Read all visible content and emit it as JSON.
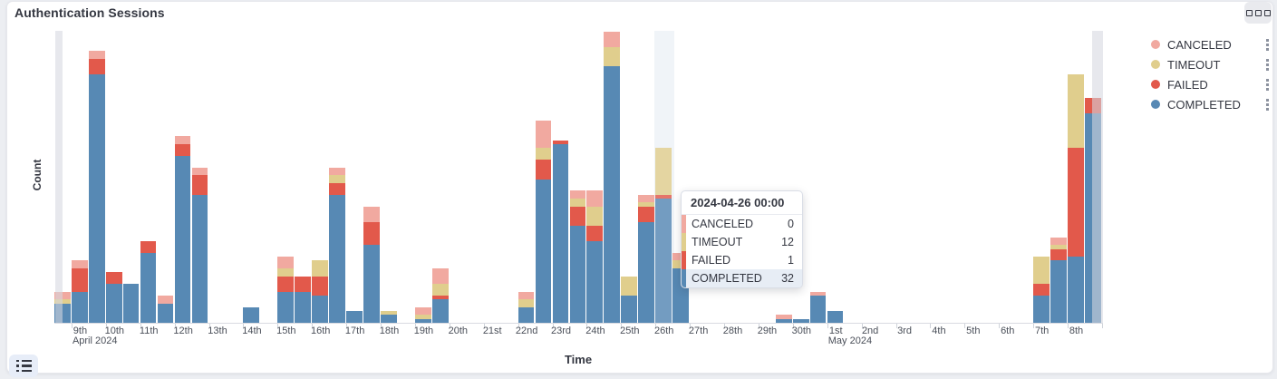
{
  "panel": {
    "title": "Authentication Sessions"
  },
  "icons": {
    "panel_options": "three-boxes-icon",
    "legend_toggle": "list-bullets-icon",
    "legend_item_action": "vertical-dots-icon"
  },
  "colors": {
    "completed": "#5789b4",
    "failed": "#e2594b",
    "timeout": "#e0ce8d",
    "canceled": "#f1a9a0",
    "hover_band": "#f0f4f8",
    "endzone": "#d5d8e0",
    "text": "#343741"
  },
  "legend": {
    "items": [
      {
        "label": "CANCELED",
        "color": "#f1a9a0"
      },
      {
        "label": "TIMEOUT",
        "color": "#e0ce8d"
      },
      {
        "label": "FAILED",
        "color": "#e2594b"
      },
      {
        "label": "COMPLETED",
        "color": "#5789b4"
      }
    ]
  },
  "tooltip": {
    "title": "2024-04-26 00:00",
    "rows": [
      {
        "label": "CANCELED",
        "value": "0",
        "color": "#f1a9a0",
        "highlighted": false
      },
      {
        "label": "TIMEOUT",
        "value": "12",
        "color": "#e0ce8d",
        "highlighted": false
      },
      {
        "label": "FAILED",
        "value": "1",
        "color": "#e2594b",
        "highlighted": false
      },
      {
        "label": "COMPLETED",
        "value": "32",
        "color": "#5789b4",
        "highlighted": true
      }
    ]
  },
  "axes": {
    "y_title": "Count",
    "x_title": "Time",
    "x_ticks": [
      {
        "m": 4,
        "d": 9,
        "label": "9th",
        "sub": "April 2024"
      },
      {
        "m": 4,
        "d": 10,
        "label": "10th"
      },
      {
        "m": 4,
        "d": 11,
        "label": "11th"
      },
      {
        "m": 4,
        "d": 12,
        "label": "12th"
      },
      {
        "m": 4,
        "d": 13,
        "label": "13th"
      },
      {
        "m": 4,
        "d": 14,
        "label": "14th"
      },
      {
        "m": 4,
        "d": 15,
        "label": "15th"
      },
      {
        "m": 4,
        "d": 16,
        "label": "16th"
      },
      {
        "m": 4,
        "d": 17,
        "label": "17th"
      },
      {
        "m": 4,
        "d": 18,
        "label": "18th"
      },
      {
        "m": 4,
        "d": 19,
        "label": "19th"
      },
      {
        "m": 4,
        "d": 20,
        "label": "20th"
      },
      {
        "m": 4,
        "d": 21,
        "label": "21st"
      },
      {
        "m": 4,
        "d": 22,
        "label": "22nd"
      },
      {
        "m": 4,
        "d": 23,
        "label": "23rd"
      },
      {
        "m": 4,
        "d": 24,
        "label": "24th"
      },
      {
        "m": 4,
        "d": 25,
        "label": "25th"
      },
      {
        "m": 4,
        "d": 26,
        "label": "26th"
      },
      {
        "m": 4,
        "d": 27,
        "label": "27th"
      },
      {
        "m": 4,
        "d": 28,
        "label": "28th"
      },
      {
        "m": 4,
        "d": 29,
        "label": "29th"
      },
      {
        "m": 4,
        "d": 30,
        "label": "30th"
      },
      {
        "m": 5,
        "d": 1,
        "label": "1st",
        "sub": "May 2024"
      },
      {
        "m": 5,
        "d": 2,
        "label": "2nd"
      },
      {
        "m": 5,
        "d": 3,
        "label": "3rd"
      },
      {
        "m": 5,
        "d": 4,
        "label": "4th"
      },
      {
        "m": 5,
        "d": 5,
        "label": "5th"
      },
      {
        "m": 5,
        "d": 6,
        "label": "6th"
      },
      {
        "m": 5,
        "d": 7,
        "label": "7th"
      },
      {
        "m": 5,
        "d": 8,
        "label": "8th"
      }
    ]
  },
  "chart_data": {
    "type": "bar",
    "stacked": true,
    "title": "Authentication Sessions",
    "xlabel": "Time",
    "ylabel": "Count",
    "x_range": [
      "2024-04-08 12:00",
      "2024-05-09 00:00"
    ],
    "bucket_interval": "12h",
    "ylim": [
      0,
      75
    ],
    "grid": false,
    "legend_position": "right",
    "series_order": [
      "COMPLETED",
      "FAILED",
      "TIMEOUT",
      "CANCELED"
    ],
    "hovered_bucket": "2024-04-26 00:00",
    "partial_buckets": [
      "2024-04-08 12:00",
      "2024-05-08 12:00"
    ],
    "buckets": [
      {
        "t": "2024-04-08 12:00",
        "values": [
          5,
          0,
          1,
          2
        ]
      },
      {
        "t": "2024-04-09 00:00",
        "values": [
          8,
          6,
          0,
          2
        ]
      },
      {
        "t": "2024-04-09 12:00",
        "values": [
          64,
          4,
          0,
          2
        ]
      },
      {
        "t": "2024-04-10 00:00",
        "values": [
          10,
          3,
          0,
          0
        ]
      },
      {
        "t": "2024-04-10 12:00",
        "values": [
          10,
          0,
          0,
          0
        ]
      },
      {
        "t": "2024-04-11 00:00",
        "values": [
          18,
          3,
          0,
          0
        ]
      },
      {
        "t": "2024-04-11 12:00",
        "values": [
          5,
          0,
          0,
          2
        ]
      },
      {
        "t": "2024-04-12 00:00",
        "values": [
          43,
          3,
          0,
          2
        ]
      },
      {
        "t": "2024-04-12 12:00",
        "values": [
          33,
          5,
          0,
          2
        ]
      },
      {
        "t": "2024-04-14 00:00",
        "values": [
          4,
          0,
          0,
          0
        ]
      },
      {
        "t": "2024-04-15 00:00",
        "values": [
          8,
          4,
          2,
          3
        ]
      },
      {
        "t": "2024-04-15 12:00",
        "values": [
          8,
          4,
          0,
          0
        ]
      },
      {
        "t": "2024-04-16 00:00",
        "values": [
          7,
          5,
          4,
          0
        ]
      },
      {
        "t": "2024-04-16 12:00",
        "values": [
          33,
          3,
          2,
          2
        ]
      },
      {
        "t": "2024-04-17 00:00",
        "values": [
          3,
          0,
          0,
          0
        ]
      },
      {
        "t": "2024-04-17 12:00",
        "values": [
          20,
          6,
          0,
          4
        ]
      },
      {
        "t": "2024-04-18 00:00",
        "values": [
          2,
          0,
          1,
          0
        ]
      },
      {
        "t": "2024-04-19 00:00",
        "values": [
          1,
          0,
          1,
          2
        ]
      },
      {
        "t": "2024-04-19 12:00",
        "values": [
          6,
          1,
          3,
          4
        ]
      },
      {
        "t": "2024-04-22 00:00",
        "values": [
          4,
          0,
          2,
          2
        ]
      },
      {
        "t": "2024-04-22 12:00",
        "values": [
          37,
          5,
          3,
          7
        ]
      },
      {
        "t": "2024-04-23 00:00",
        "values": [
          46,
          1,
          0,
          0
        ]
      },
      {
        "t": "2024-04-23 12:00",
        "values": [
          25,
          5,
          2,
          2
        ]
      },
      {
        "t": "2024-04-24 00:00",
        "values": [
          21,
          4,
          5,
          4
        ]
      },
      {
        "t": "2024-04-24 12:00",
        "values": [
          66,
          0,
          5,
          4
        ]
      },
      {
        "t": "2024-04-25 00:00",
        "values": [
          7,
          0,
          5,
          0
        ]
      },
      {
        "t": "2024-04-25 12:00",
        "values": [
          26,
          4,
          1,
          2
        ]
      },
      {
        "t": "2024-04-26 00:00",
        "values": [
          32,
          1,
          12,
          0
        ]
      },
      {
        "t": "2024-04-26 12:00",
        "values": [
          14,
          0,
          2,
          2
        ]
      },
      {
        "t": "2024-04-29 12:00",
        "values": [
          1,
          0,
          0,
          1
        ]
      },
      {
        "t": "2024-04-30 00:00",
        "values": [
          1,
          0,
          0,
          0
        ]
      },
      {
        "t": "2024-04-30 12:00",
        "values": [
          7,
          0,
          0,
          1
        ]
      },
      {
        "t": "2024-05-01 00:00",
        "values": [
          3,
          0,
          0,
          0
        ]
      },
      {
        "t": "2024-05-07 00:00",
        "values": [
          7,
          3,
          7,
          0
        ]
      },
      {
        "t": "2024-05-07 12:00",
        "values": [
          16,
          3,
          1,
          2
        ]
      },
      {
        "t": "2024-05-08 00:00",
        "values": [
          17,
          28,
          19,
          0
        ]
      },
      {
        "t": "2024-05-08 12:00",
        "values": [
          54,
          4,
          0,
          0
        ]
      }
    ]
  }
}
